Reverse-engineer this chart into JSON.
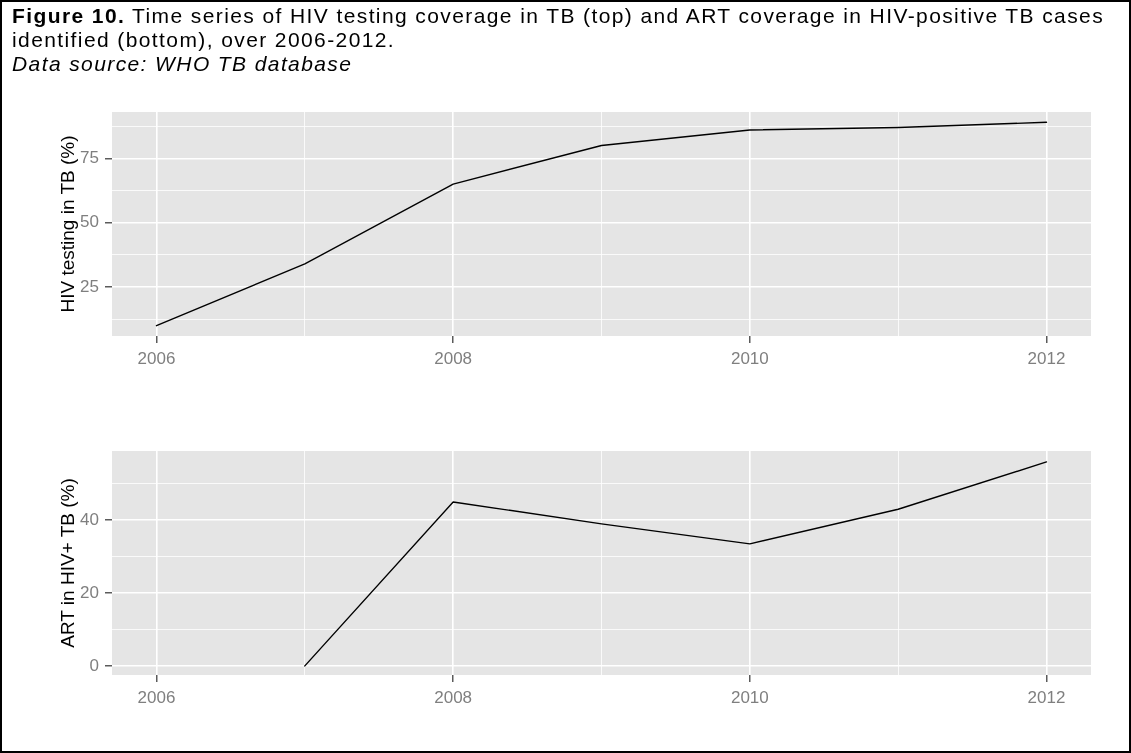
{
  "chart_data": [
    {
      "type": "line",
      "title": "Figure 10. Time series of HIV testing coverage in TB (top) and ART coverage in HIV-positive TB cases identified (bottom), over 2006-2012.",
      "annotations": [
        "Data source: WHO TB database"
      ],
      "ylabel": "HIV testing in TB (%)",
      "x": [
        2006,
        2007,
        2008,
        2009,
        2010,
        2011,
        2012
      ],
      "values": [
        10,
        34,
        65,
        80,
        86,
        87,
        89
      ],
      "color": "#000000",
      "line_style": "solid",
      "grid": true,
      "xlim": [
        2005.7,
        2012.3
      ],
      "xticks": [
        2006,
        {
          "value": 2007,
          "label": null
        },
        2008,
        {
          "value": 2009,
          "label": null
        },
        2010,
        {
          "value": 2011,
          "label": null
        },
        2012
      ],
      "ylim": [
        6,
        93
      ],
      "yticks": [
        {
          "value": 12.5,
          "label": null
        },
        25,
        {
          "value": 37.5,
          "label": null
        },
        50,
        {
          "value": 62.5,
          "label": null
        },
        75,
        {
          "value": 87.5,
          "label": null
        }
      ]
    },
    {
      "type": "line",
      "ylabel": "ART in HIV+ TB (%)",
      "x": [
        2007,
        2008,
        2009,
        2010,
        2011,
        2012
      ],
      "values": [
        0,
        45,
        39,
        33.5,
        43,
        56
      ],
      "color": "#000000",
      "line_style": "solid",
      "grid": true,
      "xlim": [
        2005.7,
        2012.3
      ],
      "xticks": [
        2006,
        {
          "value": 2007,
          "label": null
        },
        2008,
        {
          "value": 2009,
          "label": null
        },
        2010,
        {
          "value": 2011,
          "label": null
        },
        2012
      ],
      "ylim": [
        -2.5,
        59
      ],
      "yticks": [
        0,
        {
          "value": 10,
          "label": null
        },
        20,
        {
          "value": 30,
          "label": null
        },
        40,
        {
          "value": 50,
          "label": null
        }
      ]
    }
  ]
}
